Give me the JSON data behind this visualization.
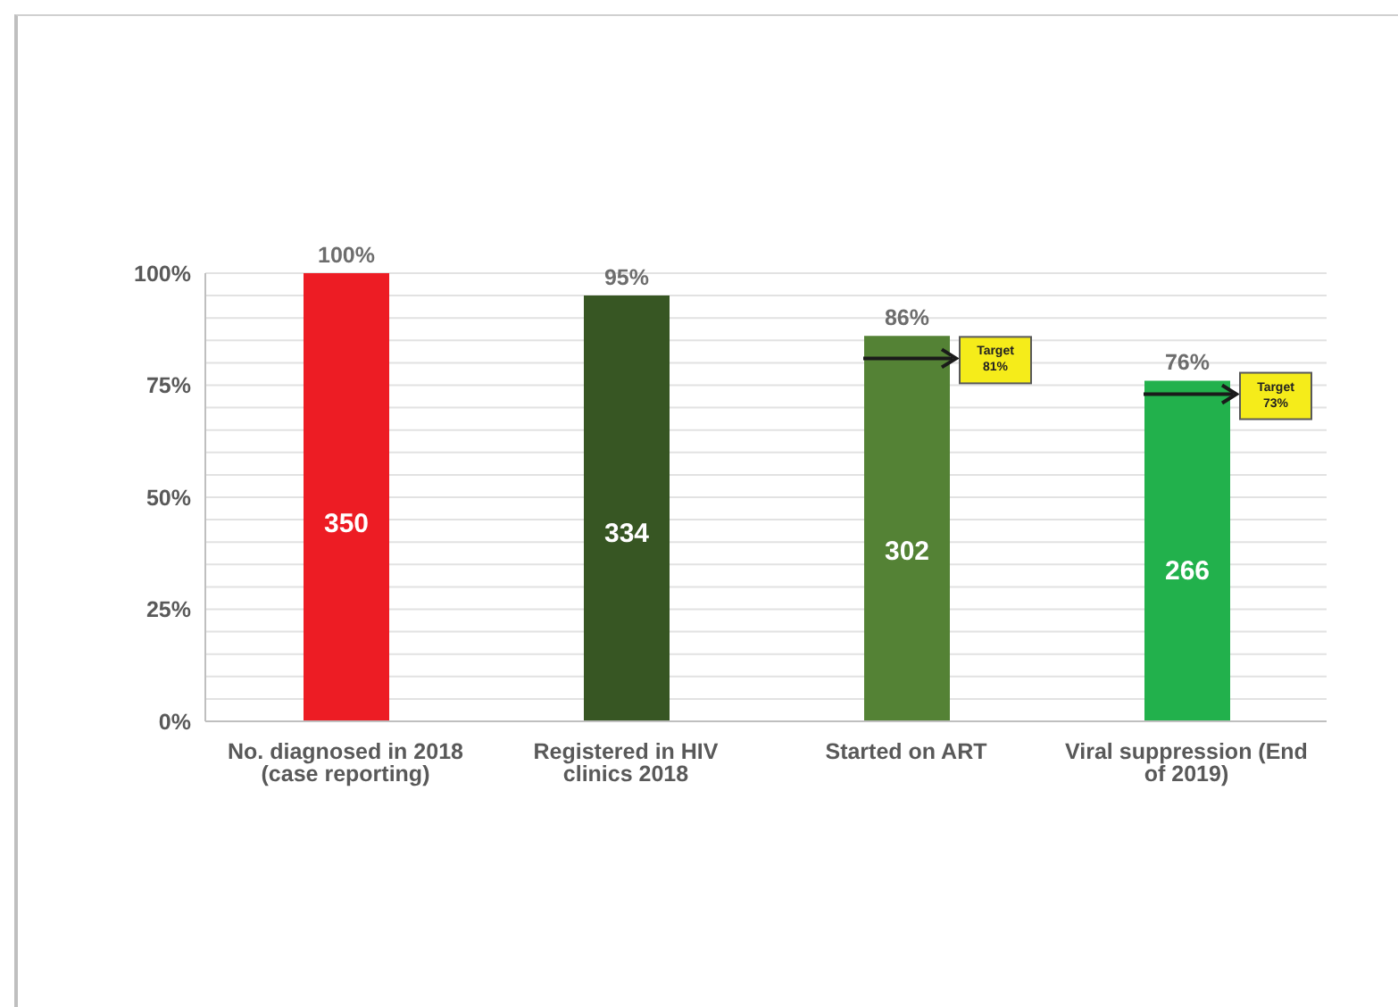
{
  "chart_data": {
    "type": "bar",
    "categories": [
      "No. diagnosed in 2018 (case reporting)",
      "Registered in HIV clinics 2018",
      "Started on ART",
      "Viral suppression (End of 2019)"
    ],
    "series": [
      {
        "values": [
          100,
          95,
          86,
          76
        ],
        "colors": [
          "#ed1c24",
          "#375623",
          "#548235",
          "#22b14c"
        ],
        "value_labels": [
          "100%",
          "95%",
          "86%",
          "76%"
        ]
      },
      {
        "type": "scatter",
        "values": [
          null,
          null,
          81,
          73
        ],
        "color": "#1a1a1a",
        "value_labels": [
          null,
          null,
          "Target\n81%",
          "Target\n73%"
        ]
      }
    ],
    "ylim": [
      0,
      100
    ],
    "yticks": [
      {
        "value": 0,
        "label": "0%"
      },
      {
        "value": 5,
        "label": null
      },
      {
        "value": 10,
        "label": null
      },
      {
        "value": 15,
        "label": null
      },
      {
        "value": 20,
        "label": null
      },
      {
        "value": 25,
        "label": "25%"
      },
      {
        "value": 30,
        "label": null
      },
      {
        "value": 35,
        "label": null
      },
      {
        "value": 40,
        "label": null
      },
      {
        "value": 45,
        "label": null
      },
      {
        "value": 50,
        "label": "50%"
      },
      {
        "value": 55,
        "label": null
      },
      {
        "value": 60,
        "label": null
      },
      {
        "value": 65,
        "label": null
      },
      {
        "value": 70,
        "label": null
      },
      {
        "value": 75,
        "label": "75%"
      },
      {
        "value": 80,
        "label": null
      },
      {
        "value": 85,
        "label": null
      },
      {
        "value": 90,
        "label": null
      },
      {
        "value": 95,
        "label": null
      },
      {
        "value": 100,
        "label": "100%"
      }
    ],
    "grid": "y",
    "annotations": [
      "350",
      "334",
      "302",
      "266"
    ]
  }
}
